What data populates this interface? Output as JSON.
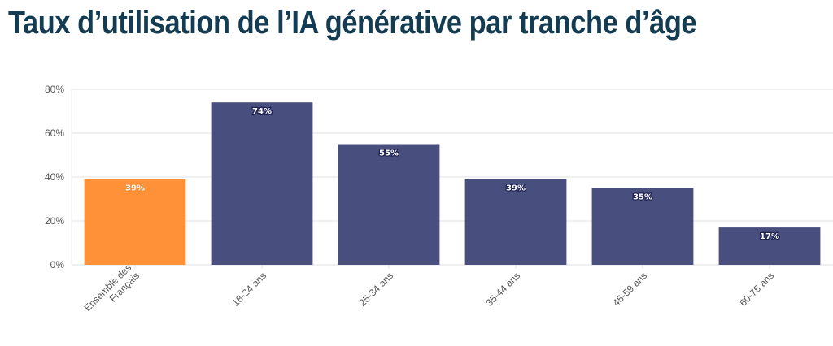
{
  "chart_data": {
    "type": "bar",
    "title": "Taux d’utilisation de l’IA générative par tranche d’âge",
    "xlabel": "",
    "ylabel": "",
    "categories": [
      "Ensemble des Français",
      "18-24 ans",
      "25-34 ans",
      "35-44 ans",
      "45-59 ans",
      "60-75 ans"
    ],
    "category_label_lines": [
      [
        "Ensemble des",
        "Français"
      ],
      [
        "18-24 ans"
      ],
      [
        "25-34 ans"
      ],
      [
        "35-44 ans"
      ],
      [
        "45-59 ans"
      ],
      [
        "60-75 ans"
      ]
    ],
    "values": [
      39,
      74,
      55,
      39,
      35,
      17
    ],
    "data_labels": [
      "39%",
      "74%",
      "55%",
      "39%",
      "35%",
      "17%"
    ],
    "ylim": [
      0,
      80
    ],
    "yticks": [
      0,
      20,
      40,
      60,
      80
    ],
    "ytick_labels": [
      "0%",
      "20%",
      "40%",
      "60%",
      "80%"
    ],
    "grid": true,
    "legend": "none",
    "colors": [
      "#ff8c2e",
      "#3e4577",
      "#3e4577",
      "#3e4577",
      "#3e4577",
      "#3e4577"
    ],
    "highlight_color": "#ff8c2e",
    "bar_color": "#3e4577"
  }
}
